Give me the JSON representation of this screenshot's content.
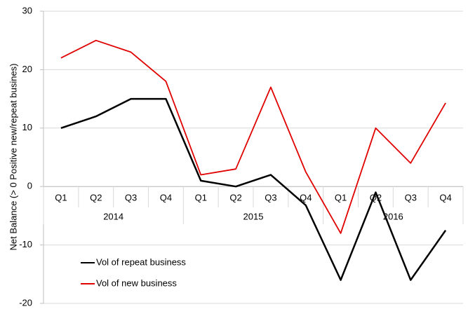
{
  "chart_data": {
    "type": "line",
    "y_label": "Net Balance (> 0 Positive new/repeat busines)",
    "categories": [
      "Q1",
      "Q2",
      "Q3",
      "Q4",
      "Q1",
      "Q2",
      "Q3",
      "Q4",
      "Q1",
      "Q2",
      "Q3",
      "Q4"
    ],
    "groups": [
      "2014",
      "2015",
      "2016"
    ],
    "series": [
      {
        "name": "Vol of repeat business",
        "color": "#000000",
        "values": [
          10,
          12,
          15,
          15,
          1,
          0,
          2,
          -3.2,
          -16,
          -1,
          -16,
          -7.5
        ]
      },
      {
        "name": "Vol of new business",
        "color": "#e00000",
        "values": [
          22,
          25,
          23,
          18,
          2,
          3,
          17,
          2.5,
          -8,
          10,
          4,
          14.3
        ]
      }
    ],
    "ylim": [
      -20,
      30
    ],
    "yticks": [
      -20,
      -10,
      0,
      10,
      20,
      30
    ],
    "grid": true,
    "legend": "lower-left"
  }
}
